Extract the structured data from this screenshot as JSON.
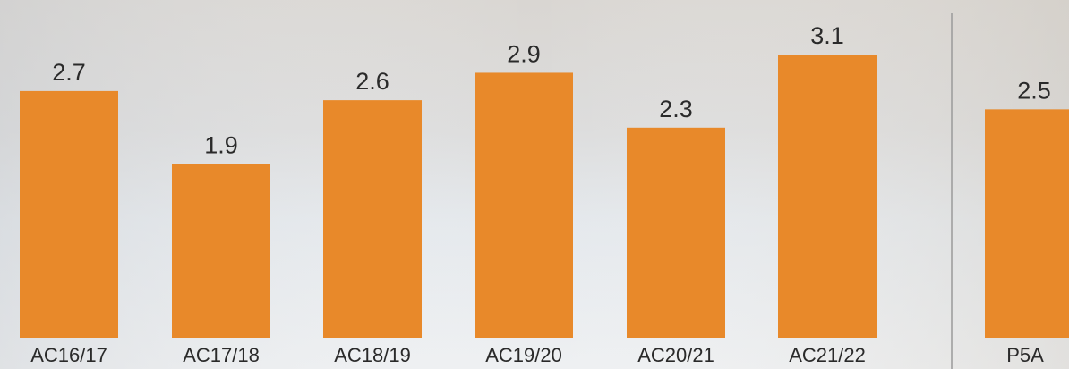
{
  "chart_data": {
    "type": "bar",
    "categories": [
      "AC16/17",
      "AC17/18",
      "AC18/19",
      "AC19/20",
      "AC20/21",
      "AC21/22",
      "P5A"
    ],
    "values": [
      2.7,
      1.9,
      2.6,
      2.9,
      2.3,
      3.1,
      2.5
    ],
    "color": "#e8892a"
  }
}
